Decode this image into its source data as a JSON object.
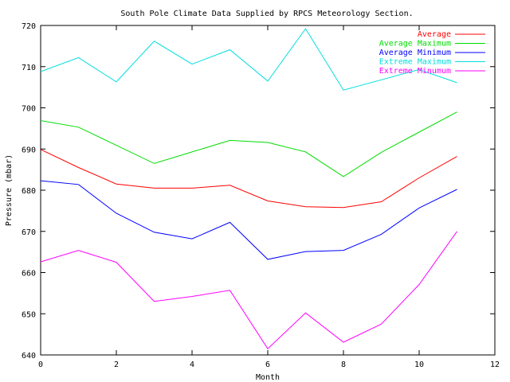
{
  "chart_data": {
    "type": "line",
    "title": "South Pole Climate Data Supplied by RPCS Meteorology Section.",
    "xlabel": "Month",
    "ylabel": "Pressure (mbar)",
    "xlim": [
      0,
      12
    ],
    "ylim": [
      640,
      720
    ],
    "xticks": [
      0,
      2,
      4,
      6,
      8,
      10,
      12
    ],
    "yticks": [
      640,
      650,
      660,
      670,
      680,
      690,
      700,
      710,
      720
    ],
    "grid": false,
    "legend_position": "top-right",
    "x": [
      0,
      1,
      2,
      3,
      4,
      5,
      6,
      7,
      8,
      9,
      10,
      11
    ],
    "series": [
      {
        "name": "Average",
        "color": "#ff0000",
        "values": [
          689.9,
          685.5,
          681.5,
          680.5,
          680.5,
          681.2,
          677.4,
          676.0,
          675.8,
          677.2,
          683.0,
          688.2
        ]
      },
      {
        "name": "Average Maximum",
        "color": "#00dd00",
        "values": [
          696.9,
          695.3,
          690.9,
          686.5,
          689.3,
          692.1,
          691.6,
          689.3,
          683.3,
          689.2,
          694.1,
          699.0
        ]
      },
      {
        "name": "Average Minimum",
        "color": "#0000ff",
        "values": [
          682.3,
          681.4,
          674.4,
          669.8,
          668.2,
          672.2,
          663.2,
          665.1,
          665.4,
          669.3,
          675.7,
          680.2
        ]
      },
      {
        "name": "Extreme Maximum",
        "color": "#00dddd",
        "values": [
          708.8,
          712.2,
          706.3,
          716.2,
          710.6,
          714.1,
          706.5,
          719.2,
          704.3,
          706.8,
          709.3,
          706.1
        ]
      },
      {
        "name": "Extreme Minumum",
        "color": "#ff00ff",
        "values": [
          662.6,
          665.4,
          662.5,
          653.0,
          654.2,
          655.7,
          641.5,
          650.2,
          643.1,
          647.5,
          657.1,
          670.0
        ]
      }
    ]
  }
}
